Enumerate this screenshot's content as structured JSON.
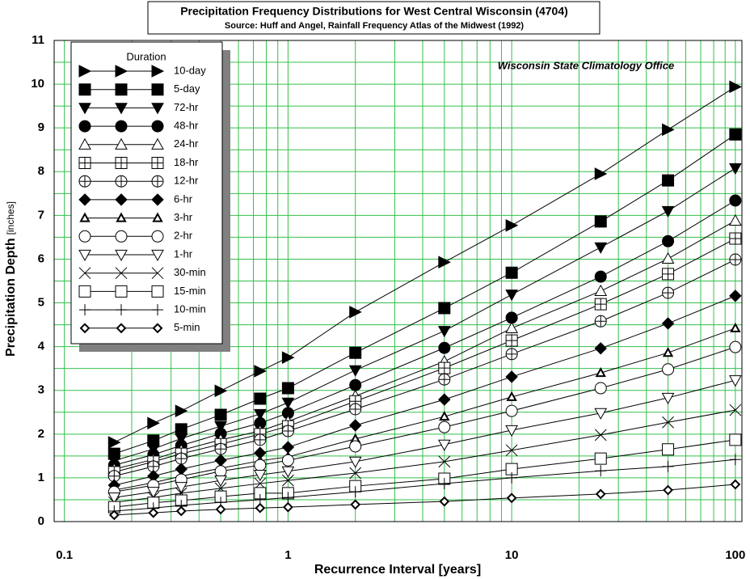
{
  "chart_data": {
    "type": "line",
    "title": "Precipitation Frequency Distributions for West Central Wisconsin (4704)",
    "subtitle": "Source: Huff and Angel, Rainfall Frequency Atlas of the Midwest (1992)",
    "annotation": "Wisconsin State Climatology Office",
    "xlabel": "Recurrence Interval [years]",
    "ylabel": "Precipitation Depth",
    "ylabel_unit": "[inches]",
    "legend_title": "Duration",
    "legend_position": "upper left",
    "xscale": "log",
    "grid": true,
    "grid_color": "#33c04a",
    "xlim": [
      0.09,
      107
    ],
    "xticks": [
      0.1,
      1,
      10,
      100
    ],
    "ylim": [
      0,
      11
    ],
    "yticks": [
      0,
      1,
      2,
      3,
      4,
      5,
      6,
      7,
      8,
      9,
      10,
      11
    ],
    "x": [
      0.167,
      0.25,
      0.333,
      0.5,
      0.75,
      1,
      2,
      5,
      10,
      25,
      50,
      100
    ],
    "series": [
      {
        "name": "10-day",
        "color": "#000000",
        "marker": "triangle-right",
        "filled": true,
        "values": [
          1.81,
          2.25,
          2.53,
          2.99,
          3.44,
          3.75,
          4.79,
          5.93,
          6.77,
          7.95,
          8.96,
          9.94
        ]
      },
      {
        "name": "5-day",
        "color": "#000000",
        "marker": "square",
        "filled": true,
        "values": [
          1.55,
          1.85,
          2.11,
          2.44,
          2.81,
          3.05,
          3.86,
          4.88,
          5.69,
          6.86,
          7.8,
          8.85
        ]
      },
      {
        "name": "72-hr",
        "color": "#000000",
        "marker": "triangle-down",
        "filled": true,
        "values": [
          1.39,
          1.66,
          1.9,
          2.18,
          2.46,
          2.72,
          3.46,
          4.36,
          5.19,
          6.27,
          7.1,
          8.08
        ]
      },
      {
        "name": "48-hr",
        "color": "#000000",
        "marker": "circle",
        "filled": true,
        "values": [
          1.29,
          1.53,
          1.74,
          2.01,
          2.25,
          2.48,
          3.12,
          3.97,
          4.66,
          5.6,
          6.41,
          7.34
        ]
      },
      {
        "name": "24-hr",
        "color": "#000000",
        "marker": "triangle-up",
        "filled": false,
        "values": [
          1.2,
          1.42,
          1.63,
          1.87,
          2.07,
          2.29,
          2.87,
          3.66,
          4.42,
          5.27,
          6.01,
          6.88
        ]
      },
      {
        "name": "18-hr",
        "color": "#000000",
        "marker": "square-plus",
        "filled": false,
        "values": [
          1.13,
          1.37,
          1.55,
          1.77,
          2.0,
          2.18,
          2.75,
          3.51,
          4.14,
          4.97,
          5.66,
          6.47
        ]
      },
      {
        "name": "12-hr",
        "color": "#000000",
        "marker": "circle-plus",
        "filled": false,
        "values": [
          1.04,
          1.26,
          1.44,
          1.66,
          1.87,
          2.07,
          2.57,
          3.25,
          3.83,
          4.58,
          5.23,
          5.99
        ]
      },
      {
        "name": "6-hr",
        "color": "#000000",
        "marker": "diamond",
        "filled": true,
        "values": [
          0.83,
          1.04,
          1.2,
          1.4,
          1.57,
          1.7,
          2.2,
          2.79,
          3.31,
          3.96,
          4.53,
          5.16
        ]
      },
      {
        "name": "3-hr",
        "color": "#000000",
        "marker": "triangle-up-small",
        "filled": false,
        "values": [
          0.72,
          0.89,
          1.04,
          1.22,
          1.39,
          1.48,
          1.89,
          2.4,
          2.85,
          3.4,
          3.86,
          4.42
        ]
      },
      {
        "name": "2-hr",
        "color": "#000000",
        "marker": "circle",
        "filled": false,
        "values": [
          0.68,
          0.83,
          0.96,
          1.15,
          1.29,
          1.4,
          1.72,
          2.16,
          2.53,
          3.05,
          3.48,
          3.99
        ]
      },
      {
        "name": "1-hr",
        "color": "#000000",
        "marker": "triangle-down",
        "filled": false,
        "values": [
          0.55,
          0.68,
          0.79,
          0.94,
          1.07,
          1.15,
          1.37,
          1.76,
          2.09,
          2.48,
          2.83,
          3.23
        ]
      },
      {
        "name": "30-min",
        "color": "#000000",
        "marker": "x",
        "filled": false,
        "values": [
          0.44,
          0.55,
          0.65,
          0.76,
          0.87,
          0.94,
          1.11,
          1.37,
          1.63,
          1.98,
          2.27,
          2.55
        ]
      },
      {
        "name": "15-min",
        "color": "#000000",
        "marker": "square",
        "filled": false,
        "values": [
          0.33,
          0.43,
          0.48,
          0.57,
          0.65,
          0.65,
          0.81,
          0.98,
          1.2,
          1.44,
          1.65,
          1.87
        ]
      },
      {
        "name": "10-min",
        "color": "#000000",
        "marker": "plus",
        "filled": false,
        "values": [
          0.24,
          0.31,
          0.37,
          0.44,
          0.5,
          0.55,
          0.68,
          0.87,
          1.0,
          1.16,
          1.26,
          1.42
        ]
      },
      {
        "name": "5-min",
        "color": "#000000",
        "marker": "diamond-small",
        "filled": false,
        "values": [
          0.15,
          0.2,
          0.24,
          0.28,
          0.31,
          0.33,
          0.39,
          0.46,
          0.54,
          0.63,
          0.72,
          0.85
        ]
      }
    ]
  }
}
